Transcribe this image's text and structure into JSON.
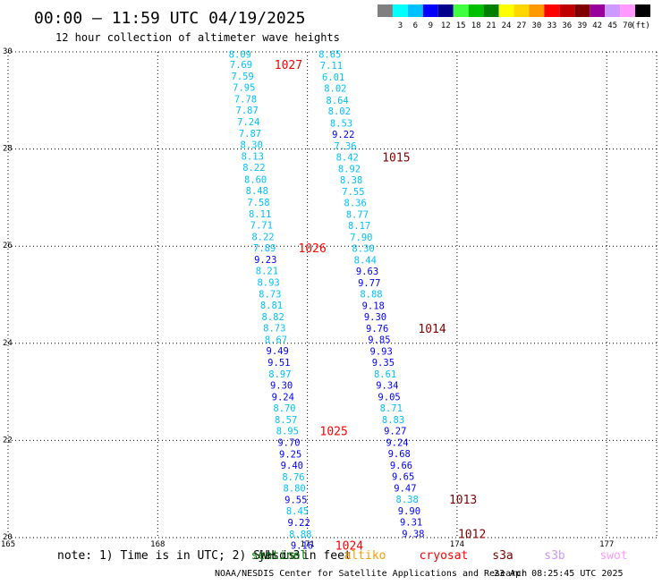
{
  "header": {
    "title": "00:00 – 11:59 UTC 04/19/2025",
    "subtitle": "12 hour collection of altimeter wave heights"
  },
  "legend": {
    "units": "(ft)",
    "items": [
      {
        "label": "",
        "color": "#808080"
      },
      {
        "label": "3",
        "color": "#00ffff"
      },
      {
        "label": "6",
        "color": "#00c0ff"
      },
      {
        "label": "9",
        "color": "#0000ff"
      },
      {
        "label": "12",
        "color": "#00008b"
      },
      {
        "label": "15",
        "color": "#40ff40"
      },
      {
        "label": "18",
        "color": "#00c000"
      },
      {
        "label": "21",
        "color": "#008000"
      },
      {
        "label": "24",
        "color": "#ffff00"
      },
      {
        "label": "27",
        "color": "#ffd700"
      },
      {
        "label": "30",
        "color": "#ff9900"
      },
      {
        "label": "33",
        "color": "#ff0000"
      },
      {
        "label": "36",
        "color": "#c00000"
      },
      {
        "label": "39",
        "color": "#800000"
      },
      {
        "label": "42",
        "color": "#990099"
      },
      {
        "label": "45",
        "color": "#cc99ff"
      },
      {
        "label": "70",
        "color": "#ff99ff"
      },
      {
        "label": "",
        "color": "#000000"
      }
    ]
  },
  "footer": {
    "note": "note: 1) Time is in UTC; 2) SWH is in feet",
    "satellites": [
      {
        "name": "jason3",
        "color": "#000000"
      },
      {
        "name": "sentinel",
        "color": "#008000"
      },
      {
        "name": "altiko",
        "color": "#ff9900"
      },
      {
        "name": "cryosat",
        "color": "#ff0000"
      },
      {
        "name": "s3a",
        "color": "#800000"
      },
      {
        "name": "s3b",
        "color": "#cc99ff"
      },
      {
        "name": "swot",
        "color": "#ff99ff"
      }
    ],
    "credit": "NOAA/NESDIS Center for Satellite Applications and Research",
    "timestamp": "23 Apr 08:25:45 UTC 2025"
  },
  "chart_data": {
    "type": "scatter",
    "xlim": [
      165,
      178
    ],
    "ylim": [
      20,
      30
    ],
    "x_ticks": [
      "165",
      "168",
      "171",
      "174",
      "177"
    ],
    "y_ticks": [
      "30",
      "28",
      "26",
      "24",
      "22",
      "20"
    ],
    "y_tick_values": [
      30,
      28,
      26,
      24,
      22,
      20
    ],
    "x_tick_values": [
      165,
      168,
      171,
      174,
      177
    ],
    "grid": true,
    "track1": [
      {
        "lon": 169.65,
        "lat": 29.95,
        "v": "8.09",
        "c": "#00c0ff"
      },
      {
        "lon": 169.67,
        "lat": 29.74,
        "v": "7.69",
        "c": "#00c0ff"
      },
      {
        "lon": 169.7,
        "lat": 29.5,
        "v": "7.59",
        "c": "#00c0ff"
      },
      {
        "lon": 169.73,
        "lat": 29.27,
        "v": "7.95",
        "c": "#00c0ff"
      },
      {
        "lon": 169.76,
        "lat": 29.03,
        "v": "7.78",
        "c": "#00c0ff"
      },
      {
        "lon": 169.79,
        "lat": 28.8,
        "v": "7.87",
        "c": "#00c0ff"
      },
      {
        "lon": 169.82,
        "lat": 28.56,
        "v": "7.24",
        "c": "#00c0ff"
      },
      {
        "lon": 169.85,
        "lat": 28.32,
        "v": "7.87",
        "c": "#00c0ff"
      },
      {
        "lon": 169.88,
        "lat": 28.09,
        "v": "8.30",
        "c": "#00c0ff"
      },
      {
        "lon": 169.9,
        "lat": 27.85,
        "v": "8.13",
        "c": "#00c0ff"
      },
      {
        "lon": 169.93,
        "lat": 27.62,
        "v": "8.22",
        "c": "#00c0ff"
      },
      {
        "lon": 169.96,
        "lat": 27.38,
        "v": "8.60",
        "c": "#00c0ff"
      },
      {
        "lon": 169.99,
        "lat": 27.15,
        "v": "8.48",
        "c": "#00c0ff"
      },
      {
        "lon": 170.02,
        "lat": 26.91,
        "v": "7.58",
        "c": "#00c0ff"
      },
      {
        "lon": 170.05,
        "lat": 26.67,
        "v": "8.11",
        "c": "#00c0ff"
      },
      {
        "lon": 170.08,
        "lat": 26.44,
        "v": "7.71",
        "c": "#00c0ff"
      },
      {
        "lon": 170.11,
        "lat": 26.2,
        "v": "8.22",
        "c": "#00c0ff"
      },
      {
        "lon": 170.14,
        "lat": 25.97,
        "v": "7.89",
        "c": "#00c0ff"
      },
      {
        "lon": 170.16,
        "lat": 25.73,
        "v": "9.23",
        "c": "#0000ff"
      },
      {
        "lon": 170.19,
        "lat": 25.5,
        "v": "8.21",
        "c": "#00c0ff"
      },
      {
        "lon": 170.22,
        "lat": 25.26,
        "v": "8.93",
        "c": "#00c0ff"
      },
      {
        "lon": 170.25,
        "lat": 25.02,
        "v": "8.73",
        "c": "#00c0ff"
      },
      {
        "lon": 170.28,
        "lat": 24.79,
        "v": "8.81",
        "c": "#00c0ff"
      },
      {
        "lon": 170.31,
        "lat": 24.55,
        "v": "8.82",
        "c": "#00c0ff"
      },
      {
        "lon": 170.34,
        "lat": 24.32,
        "v": "8.73",
        "c": "#00c0ff"
      },
      {
        "lon": 170.37,
        "lat": 24.08,
        "v": "8.67",
        "c": "#00c0ff"
      },
      {
        "lon": 170.4,
        "lat": 23.85,
        "v": "9.49",
        "c": "#0000ff"
      },
      {
        "lon": 170.43,
        "lat": 23.61,
        "v": "9.51",
        "c": "#0000ff"
      },
      {
        "lon": 170.45,
        "lat": 23.37,
        "v": "8.97",
        "c": "#00c0ff"
      },
      {
        "lon": 170.48,
        "lat": 23.14,
        "v": "9.30",
        "c": "#0000ff"
      },
      {
        "lon": 170.51,
        "lat": 22.9,
        "v": "9.24",
        "c": "#0000ff"
      },
      {
        "lon": 170.54,
        "lat": 22.67,
        "v": "8.70",
        "c": "#00c0ff"
      },
      {
        "lon": 170.57,
        "lat": 22.43,
        "v": "8.57",
        "c": "#00c0ff"
      },
      {
        "lon": 170.6,
        "lat": 22.2,
        "v": "8.95",
        "c": "#00c0ff"
      },
      {
        "lon": 170.63,
        "lat": 21.96,
        "v": "9.70",
        "c": "#0000ff"
      },
      {
        "lon": 170.66,
        "lat": 21.72,
        "v": "9.25",
        "c": "#0000ff"
      },
      {
        "lon": 170.69,
        "lat": 21.49,
        "v": "9.40",
        "c": "#0000ff"
      },
      {
        "lon": 170.72,
        "lat": 21.25,
        "v": "8.76",
        "c": "#00c0ff"
      },
      {
        "lon": 170.74,
        "lat": 21.02,
        "v": "8.80",
        "c": "#00c0ff"
      },
      {
        "lon": 170.77,
        "lat": 20.78,
        "v": "9.55",
        "c": "#0000ff"
      },
      {
        "lon": 170.8,
        "lat": 20.55,
        "v": "8.45",
        "c": "#00c0ff"
      },
      {
        "lon": 170.83,
        "lat": 20.31,
        "v": "9.22",
        "c": "#0000ff"
      },
      {
        "lon": 170.86,
        "lat": 20.07,
        "v": "8.88",
        "c": "#00c0ff"
      },
      {
        "lon": 170.89,
        "lat": 19.84,
        "v": "9.16",
        "c": "#0000ff"
      }
    ],
    "track2": [
      {
        "lon": 171.45,
        "lat": 29.95,
        "v": "8.65",
        "c": "#00c0ff"
      },
      {
        "lon": 171.48,
        "lat": 29.72,
        "v": "7.11",
        "c": "#00c0ff"
      },
      {
        "lon": 171.52,
        "lat": 29.48,
        "v": "6.01",
        "c": "#00c0ff"
      },
      {
        "lon": 171.56,
        "lat": 29.25,
        "v": "8.02",
        "c": "#00c0ff"
      },
      {
        "lon": 171.6,
        "lat": 29.01,
        "v": "8.64",
        "c": "#00c0ff"
      },
      {
        "lon": 171.64,
        "lat": 28.78,
        "v": "8.02",
        "c": "#00c0ff"
      },
      {
        "lon": 171.68,
        "lat": 28.54,
        "v": "8.53",
        "c": "#00c0ff"
      },
      {
        "lon": 171.72,
        "lat": 28.31,
        "v": "9.22",
        "c": "#0000ff"
      },
      {
        "lon": 171.76,
        "lat": 28.07,
        "v": "7.36",
        "c": "#00c0ff"
      },
      {
        "lon": 171.8,
        "lat": 27.84,
        "v": "8.42",
        "c": "#00c0ff"
      },
      {
        "lon": 171.84,
        "lat": 27.6,
        "v": "8.92",
        "c": "#00c0ff"
      },
      {
        "lon": 171.88,
        "lat": 27.37,
        "v": "8.38",
        "c": "#00c0ff"
      },
      {
        "lon": 171.92,
        "lat": 27.13,
        "v": "7.55",
        "c": "#00c0ff"
      },
      {
        "lon": 171.96,
        "lat": 26.9,
        "v": "8.36",
        "c": "#00c0ff"
      },
      {
        "lon": 172.0,
        "lat": 26.66,
        "v": "8.77",
        "c": "#00c0ff"
      },
      {
        "lon": 172.04,
        "lat": 26.43,
        "v": "8.17",
        "c": "#00c0ff"
      },
      {
        "lon": 172.08,
        "lat": 26.19,
        "v": "7.90",
        "c": "#00c0ff"
      },
      {
        "lon": 172.12,
        "lat": 25.96,
        "v": "8.30",
        "c": "#00c0ff"
      },
      {
        "lon": 172.16,
        "lat": 25.72,
        "v": "8.44",
        "c": "#00c0ff"
      },
      {
        "lon": 172.2,
        "lat": 25.49,
        "v": "9.63",
        "c": "#0000ff"
      },
      {
        "lon": 172.24,
        "lat": 25.25,
        "v": "9.77",
        "c": "#0000ff"
      },
      {
        "lon": 172.28,
        "lat": 25.02,
        "v": "8.88",
        "c": "#00c0ff"
      },
      {
        "lon": 172.32,
        "lat": 24.78,
        "v": "9.18",
        "c": "#0000ff"
      },
      {
        "lon": 172.36,
        "lat": 24.55,
        "v": "9.30",
        "c": "#0000ff"
      },
      {
        "lon": 172.4,
        "lat": 24.31,
        "v": "9.76",
        "c": "#0000ff"
      },
      {
        "lon": 172.44,
        "lat": 24.08,
        "v": "9.85",
        "c": "#0000ff"
      },
      {
        "lon": 172.48,
        "lat": 23.84,
        "v": "9.93",
        "c": "#0000ff"
      },
      {
        "lon": 172.52,
        "lat": 23.61,
        "v": "9.35",
        "c": "#0000ff"
      },
      {
        "lon": 172.56,
        "lat": 23.37,
        "v": "8.61",
        "c": "#00c0ff"
      },
      {
        "lon": 172.6,
        "lat": 23.14,
        "v": "9.34",
        "c": "#0000ff"
      },
      {
        "lon": 172.64,
        "lat": 22.9,
        "v": "9.05",
        "c": "#0000ff"
      },
      {
        "lon": 172.68,
        "lat": 22.67,
        "v": "8.71",
        "c": "#00c0ff"
      },
      {
        "lon": 172.72,
        "lat": 22.43,
        "v": "8.83",
        "c": "#00c0ff"
      },
      {
        "lon": 172.76,
        "lat": 22.2,
        "v": "9.27",
        "c": "#0000ff"
      },
      {
        "lon": 172.8,
        "lat": 21.96,
        "v": "9.24",
        "c": "#0000ff"
      },
      {
        "lon": 172.84,
        "lat": 21.73,
        "v": "9.68",
        "c": "#0000ff"
      },
      {
        "lon": 172.88,
        "lat": 21.49,
        "v": "9.66",
        "c": "#0000ff"
      },
      {
        "lon": 172.92,
        "lat": 21.26,
        "v": "9.65",
        "c": "#0000ff"
      },
      {
        "lon": 172.96,
        "lat": 21.02,
        "v": "9.47",
        "c": "#0000ff"
      },
      {
        "lon": 173.0,
        "lat": 20.79,
        "v": "8.38",
        "c": "#00c0ff"
      },
      {
        "lon": 173.04,
        "lat": 20.55,
        "v": "9.90",
        "c": "#0000ff"
      },
      {
        "lon": 173.08,
        "lat": 20.32,
        "v": "9.31",
        "c": "#0000ff"
      },
      {
        "lon": 173.12,
        "lat": 20.08,
        "v": "9.38",
        "c": "#0000ff"
      }
    ],
    "annotations": [
      {
        "text": "1027",
        "lon": 170.62,
        "lat": 29.74,
        "c": "#ff0000"
      },
      {
        "text": "1026",
        "lon": 171.1,
        "lat": 25.97,
        "c": "#ff0000"
      },
      {
        "text": "1025",
        "lon": 171.53,
        "lat": 22.2,
        "c": "#ff0000"
      },
      {
        "text": "1024",
        "lon": 171.84,
        "lat": 19.84,
        "c": "#ff0000"
      },
      {
        "text": "1015",
        "lon": 172.78,
        "lat": 27.84,
        "c": "#800000"
      },
      {
        "text": "1014",
        "lon": 173.5,
        "lat": 24.31,
        "c": "#800000"
      },
      {
        "text": "1013",
        "lon": 174.12,
        "lat": 20.79,
        "c": "#800000"
      },
      {
        "text": "1012",
        "lon": 174.3,
        "lat": 20.08,
        "c": "#800000"
      }
    ]
  }
}
